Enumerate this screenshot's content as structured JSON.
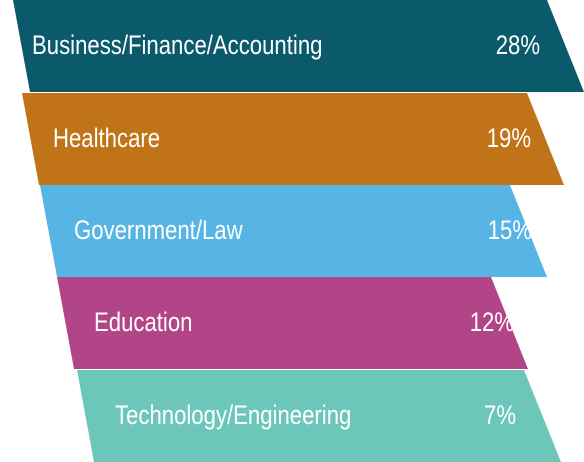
{
  "chart_data": {
    "type": "bar",
    "categories": [
      "Business/Finance/Accounting",
      "Healthcare",
      "Government/Law",
      "Education",
      "Technology/Engineering"
    ],
    "values": [
      28,
      19,
      15,
      12,
      7
    ],
    "value_labels": [
      "28%",
      "19%",
      "15%",
      "12%",
      "7%"
    ],
    "colors": [
      "#0b5a6b",
      "#c07417",
      "#56b5e5",
      "#b24488",
      "#6cc6ba"
    ],
    "title": "",
    "xlabel": "",
    "ylabel": ""
  }
}
